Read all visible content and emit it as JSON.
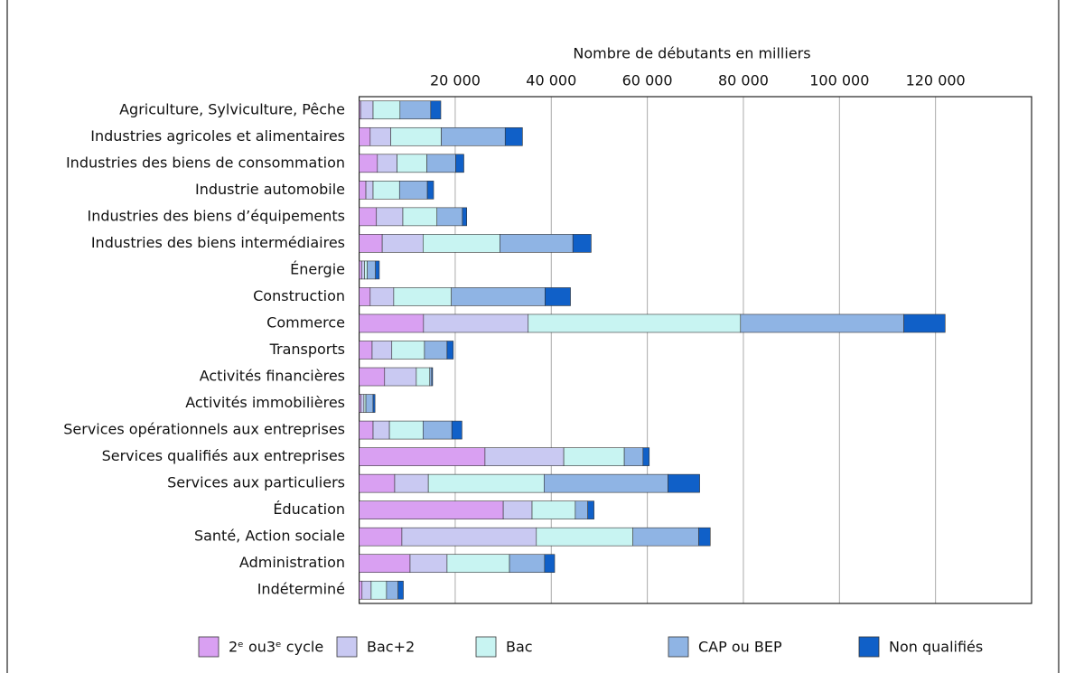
{
  "chart_data": {
    "type": "stacked-barh",
    "x_label": "Nombre de débutants en milliers",
    "categories": [
      "Agriculture, Sylviculture, Pêche",
      "Industries agricoles et alimentaires",
      "Industries des biens de consommation",
      "Industrie automobile",
      "Industries des biens d’équipements",
      "Industries des biens intermédiaires",
      "Énergie",
      "Construction",
      "Commerce",
      "Transports",
      "Activités financières",
      "Activités immobilières",
      "Services opérationnels aux entreprises",
      "Services qualifiés aux entreprises",
      "Services aux particuliers",
      "Éducation",
      "Santé, Action sociale",
      "Administration",
      "Indéterminé"
    ],
    "series": [
      {
        "name": "2ᵉ ou3ᵉ cycle",
        "color": "#d9a0f2",
        "values": [
          300,
          2300,
          3800,
          1400,
          3600,
          4800,
          500,
          2300,
          13400,
          2700,
          5300,
          400,
          2900,
          26200,
          7400,
          30000,
          8900,
          10600,
          600
        ]
      },
      {
        "name": "Bac+2",
        "color": "#c9c9f2",
        "values": [
          2600,
          4300,
          4100,
          1500,
          5500,
          8500,
          600,
          4900,
          21800,
          4100,
          6600,
          600,
          3400,
          16400,
          7000,
          6000,
          28000,
          7700,
          1900
        ]
      },
      {
        "name": "Bac",
        "color": "#c8f4f2",
        "values": [
          5600,
          10500,
          6200,
          5500,
          7100,
          16000,
          600,
          12000,
          44200,
          6800,
          2800,
          400,
          7000,
          12600,
          24100,
          9000,
          20100,
          13000,
          3200
        ]
      },
      {
        "name": "CAP ou BEP",
        "color": "#8fb4e4",
        "values": [
          6400,
          13300,
          6000,
          5800,
          5300,
          15200,
          1700,
          19500,
          34000,
          4700,
          400,
          1500,
          6000,
          3900,
          25800,
          2600,
          13700,
          7300,
          2400
        ]
      },
      {
        "name": "Non qualifiés",
        "color": "#1060c8",
        "values": [
          2100,
          3600,
          1700,
          1300,
          900,
          3800,
          800,
          5300,
          8600,
          1300,
          200,
          400,
          2100,
          1300,
          6600,
          1300,
          2400,
          2100,
          1100
        ]
      }
    ],
    "xlim": [
      0,
      140000
    ],
    "xticks": [
      {
        "value": 20000,
        "label": "20 000"
      },
      {
        "value": 40000,
        "label": "40 000"
      },
      {
        "value": 60000,
        "label": "60 000"
      },
      {
        "value": 80000,
        "label": "80 000"
      },
      {
        "value": 100000,
        "label": "100 000"
      },
      {
        "value": 120000,
        "label": "120 000"
      }
    ],
    "grid": true
  }
}
